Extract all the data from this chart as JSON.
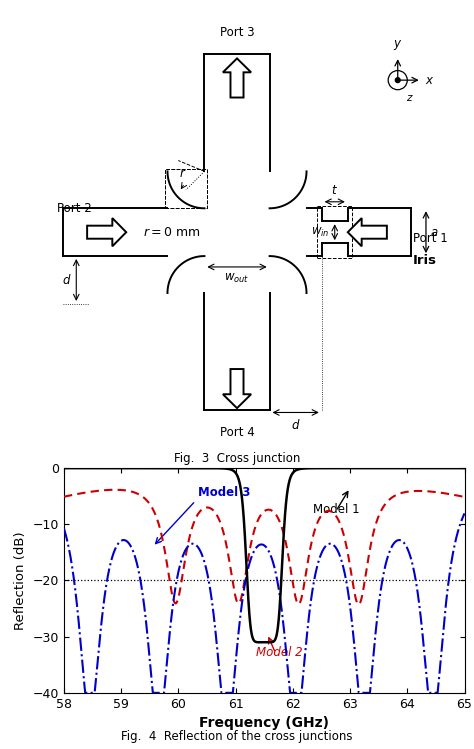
{
  "fig3_title": "Fig.  3  Cross junction",
  "fig4_title": "Fig.  4  Reflection of the cross junctions",
  "chart_xlabel": "Frequency (GHz)",
  "chart_ylabel": "Reflection (dB)",
  "xlim": [
    58,
    65
  ],
  "ylim": [
    -40,
    0
  ],
  "xticks": [
    58,
    59,
    60,
    61,
    62,
    63,
    64,
    65
  ],
  "yticks": [
    0,
    -10,
    -20,
    -30,
    -40
  ],
  "ytick_labels": [
    "0",
    "−10",
    "−20",
    "−30",
    "−40"
  ],
  "hline_y": -20,
  "model1_color": "#000000",
  "model2_color": "#cc0000",
  "model3_color": "#0000cc"
}
